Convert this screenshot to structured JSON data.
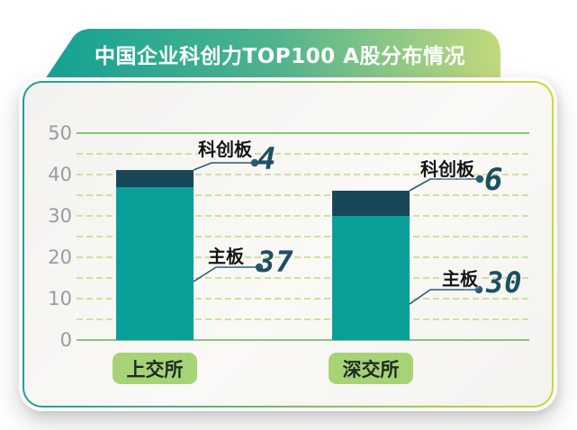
{
  "title": {
    "text": "中国企业科创力TOP100 A股分布情况"
  },
  "chart_data": {
    "type": "bar",
    "stacked": true,
    "title": "中国企业科创力TOP100 A股分布情况",
    "categories": [
      "上交所",
      "深交所"
    ],
    "series": [
      {
        "name": "主板",
        "values": [
          37,
          30
        ],
        "color": "#0aa099"
      },
      {
        "name": "科创板",
        "values": [
          4,
          6
        ],
        "color": "#19475a"
      }
    ],
    "totals": [
      41,
      36
    ],
    "xlabel": "",
    "ylabel": "",
    "ylim": [
      0,
      50
    ],
    "yticks": [
      0,
      10,
      20,
      30,
      40,
      50
    ],
    "grid": {
      "minor_step": 5,
      "minor_style": "dashed",
      "major_lines": [
        0,
        50
      ],
      "major_style": "solid"
    },
    "legend_position": "none",
    "annotations": [
      {
        "category": "上交所",
        "label": "科创板",
        "value": 4
      },
      {
        "category": "上交所",
        "label": "主板",
        "value": 37
      },
      {
        "category": "深交所",
        "label": "科创板",
        "value": 6
      },
      {
        "category": "深交所",
        "label": "主板",
        "value": 30
      }
    ]
  },
  "colors": {
    "main_board": "#0aa099",
    "star_board": "#19475a",
    "leader_line": "#2b5a72",
    "value_number": "#1d4f63",
    "category_pill_bg": "#a7d377",
    "category_pill_text": "#1f2a24",
    "grid_solid": "#86c67e",
    "grid_dashed": "#cbe29c",
    "axis_label": "#9b9b9b",
    "title_text": "#ffffff",
    "banner_gradient": [
      "#12a294",
      "#4fb38d",
      "#c3da7d"
    ],
    "card_border_gradient": [
      "#1fa099",
      "#ccd933"
    ]
  }
}
